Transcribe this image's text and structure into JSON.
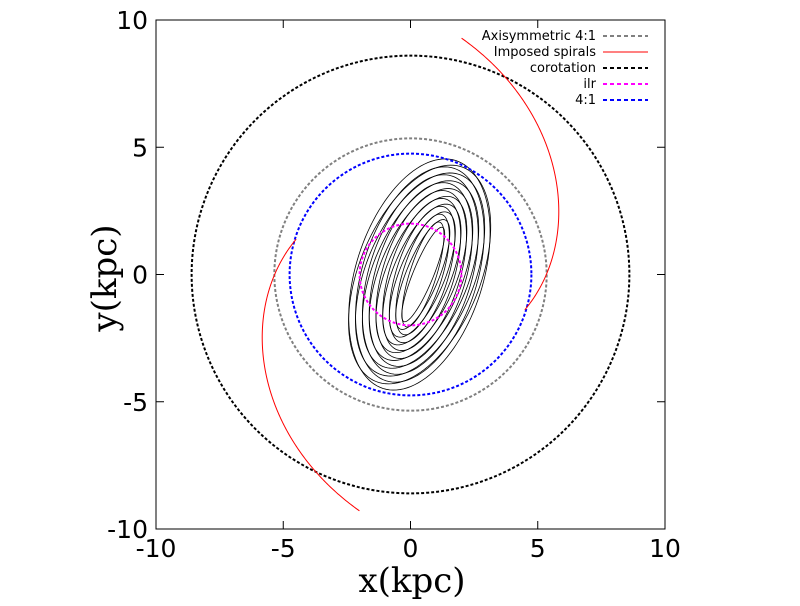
{
  "chart_data": {
    "type": "line",
    "title": "",
    "xlabel": "x(kpc)",
    "ylabel": "y(kpc)",
    "xlim": [
      -10,
      10
    ],
    "ylim": [
      -10,
      10
    ],
    "xticks": [
      -10,
      -5,
      0,
      5,
      10
    ],
    "yticks": [
      -10,
      -5,
      0,
      5,
      10
    ],
    "xtick_labels": [
      "-10",
      "-5",
      "0",
      "5",
      "10"
    ],
    "ytick_labels": [
      "-10",
      "-5",
      "0",
      "5",
      "10"
    ],
    "grid": false,
    "legend_position": "top-right",
    "series": [
      {
        "name": "Axisymmetric 4:1",
        "kind": "circle",
        "radius": 5.35,
        "color": "#808080",
        "style": "dashed"
      },
      {
        "name": "Imposed spirals",
        "kind": "logarithmic-spiral-pair",
        "pitch_angle_deg": 23,
        "r_min": 4.7,
        "r_max": 9.5,
        "color": "#ff0000",
        "style": "solid"
      },
      {
        "name": "corotation",
        "kind": "circle",
        "radius": 8.6,
        "color": "#000000",
        "style": "dashed"
      },
      {
        "name": "ilr",
        "kind": "circle",
        "radius": 2.0,
        "color": "#ff00ff",
        "style": "dashed"
      },
      {
        "name": "4:1",
        "kind": "circle",
        "radius": 4.75,
        "color": "#0000ff",
        "style": "dashed"
      }
    ],
    "orbit_family": {
      "color": "#000000",
      "style": "solid",
      "count": 18,
      "shape": "elongated ellipses tilted ~20 degrees, center (0.5, 0)",
      "semi_major": [
        2.0,
        4.7
      ],
      "semi_minor": [
        0.4,
        2.5
      ]
    }
  }
}
